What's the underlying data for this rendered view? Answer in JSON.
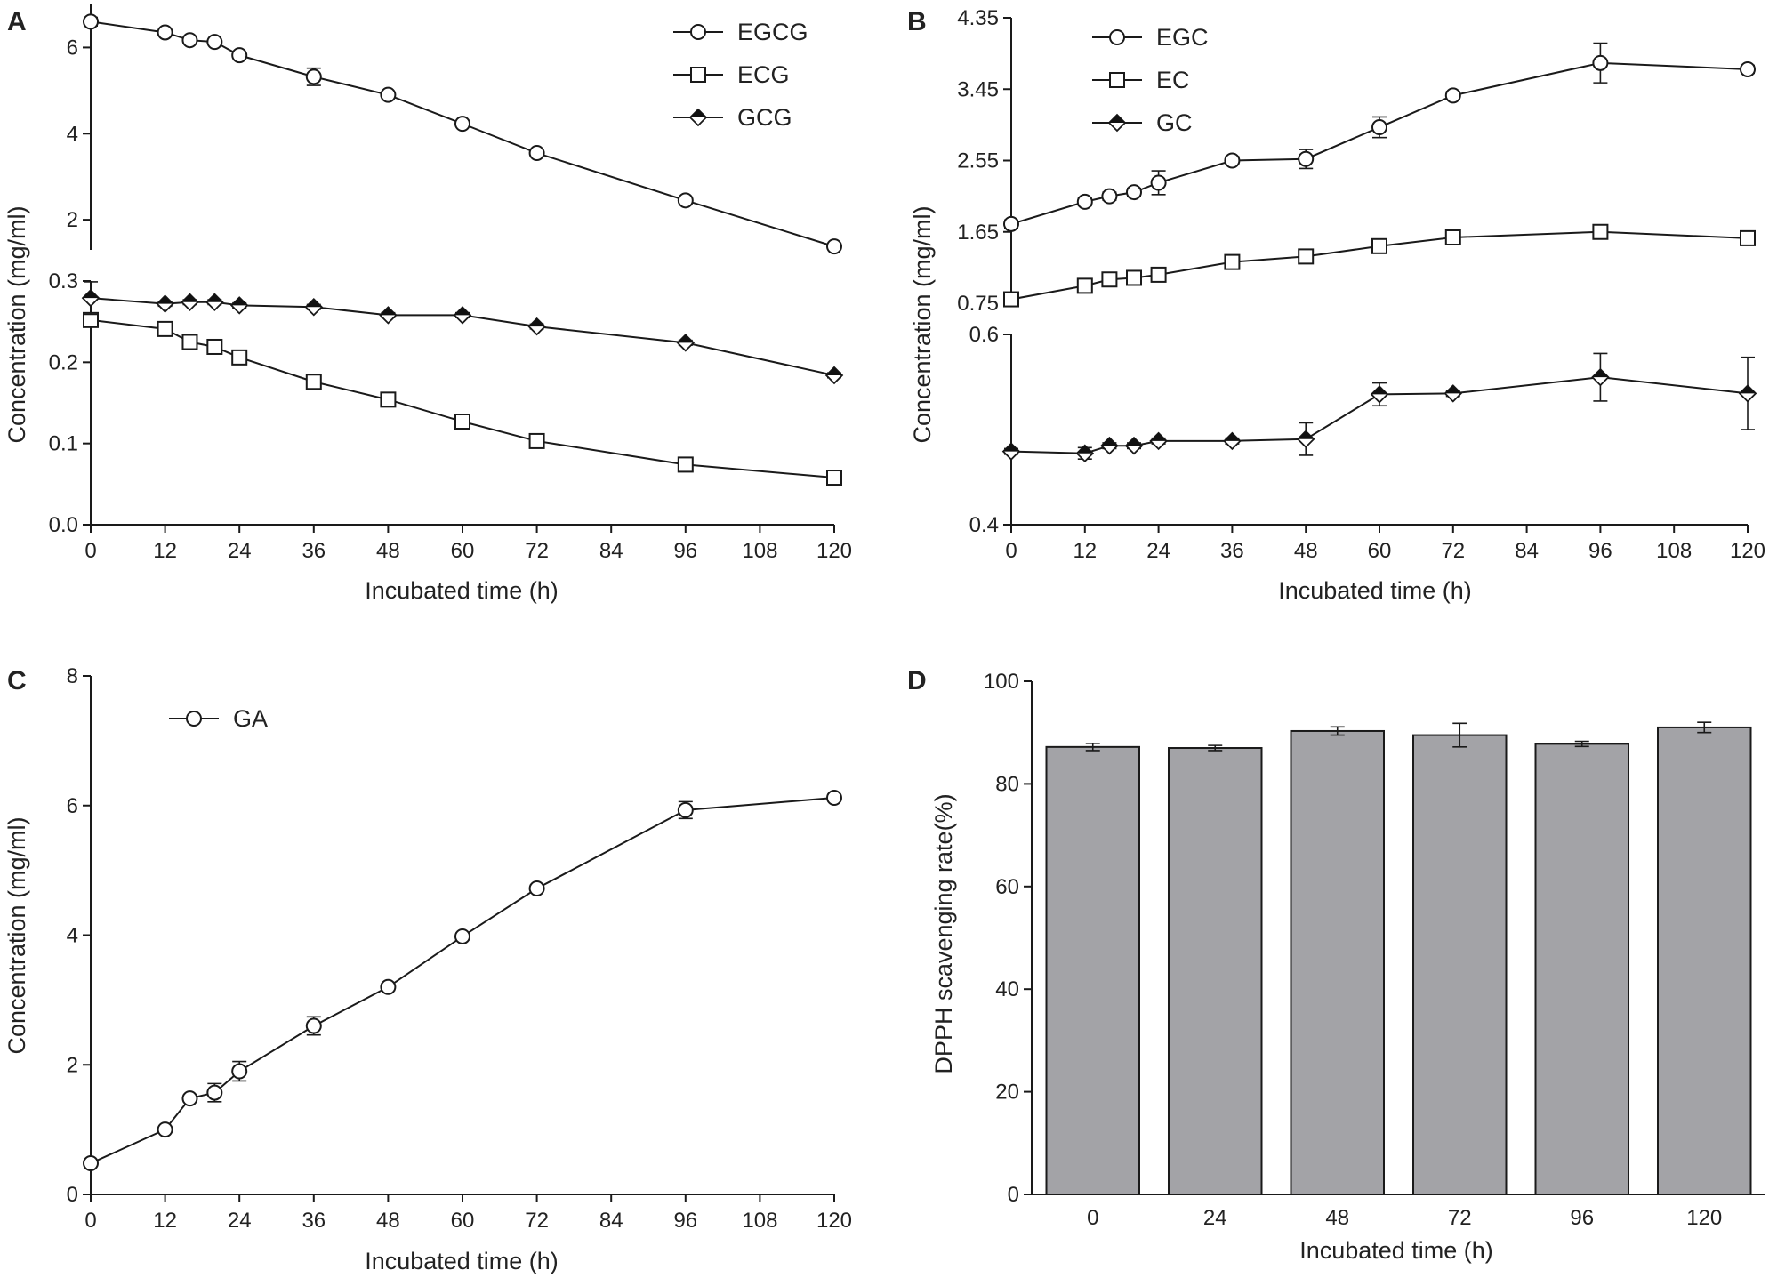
{
  "figure": {
    "colors": {
      "line": "#1a1a1a",
      "marker_fill": "#ffffff",
      "marker_solid": "#111111",
      "bar_fill": "#a3a3a7"
    },
    "panels": [
      {
        "id": "A",
        "label": "A",
        "xlabel": "Incubated time (h)",
        "ylabel": "Concentration (mg/ml)"
      },
      {
        "id": "B",
        "label": "B",
        "xlabel": "Incubated time (h)",
        "ylabel": "Concentration (mg/ml)"
      },
      {
        "id": "C",
        "label": "C",
        "xlabel": "Incubated time (h)",
        "ylabel": "Concentration (mg/ml)"
      },
      {
        "id": "D",
        "label": "D",
        "xlabel": "Incubated time (h)",
        "ylabel": "DPPH scavenging rate(%)"
      }
    ]
  },
  "chart_data": [
    {
      "panel": "A",
      "type": "line",
      "title": "",
      "xlabel": "Incubated time (h)",
      "ylabel": "Concentration (mg/ml)",
      "xlim": [
        0,
        120
      ],
      "xticks": [
        "0",
        "12",
        "24",
        "36",
        "48",
        "60",
        "72",
        "84",
        "96",
        "108",
        "120"
      ],
      "broken_y_axis": true,
      "upper_segment": {
        "ylim": [
          1.3,
          7.0
        ],
        "yticks": [
          "2",
          "4",
          "6"
        ]
      },
      "lower_segment": {
        "ylim": [
          0,
          0.3
        ],
        "yticks": [
          "0.0",
          "0.1",
          "0.2",
          "0.3"
        ]
      },
      "legend": [
        "EGCG",
        "ECG",
        "GCG"
      ],
      "series": [
        {
          "name": "EGCG",
          "segment": "upper",
          "marker": "circle-open",
          "x": [
            0,
            12,
            16,
            20,
            24,
            36,
            48,
            60,
            72,
            96,
            120
          ],
          "y": [
            6.6,
            6.35,
            6.17,
            6.13,
            5.82,
            5.32,
            4.9,
            4.23,
            3.55,
            2.45,
            1.38
          ],
          "err": [
            0.1,
            0.05,
            0.05,
            0.05,
            0.05,
            0.2,
            0.05,
            0.05,
            0.05,
            0.05,
            0.05
          ]
        },
        {
          "name": "ECG",
          "segment": "lower",
          "marker": "square-open",
          "x": [
            0,
            12,
            16,
            20,
            24,
            36,
            48,
            60,
            72,
            96,
            120
          ],
          "y": [
            0.252,
            0.241,
            0.225,
            0.219,
            0.206,
            0.176,
            0.154,
            0.127,
            0.103,
            0.074,
            0.058
          ],
          "err": [
            0.004,
            0.003,
            0.003,
            0.003,
            0.003,
            0.003,
            0.003,
            0.003,
            0.003,
            0.003,
            0.003
          ]
        },
        {
          "name": "GCG",
          "segment": "lower",
          "marker": "diamond-solid",
          "x": [
            0,
            12,
            16,
            20,
            24,
            36,
            48,
            60,
            72,
            96,
            120
          ],
          "y": [
            0.279,
            0.272,
            0.274,
            0.274,
            0.27,
            0.268,
            0.258,
            0.258,
            0.244,
            0.224,
            0.184
          ],
          "err": [
            0.02,
            0.003,
            0.003,
            0.003,
            0.003,
            0.003,
            0.003,
            0.003,
            0.003,
            0.003,
            0.003
          ]
        }
      ]
    },
    {
      "panel": "B",
      "type": "line",
      "title": "",
      "xlabel": "Incubated time (h)",
      "ylabel": "Concentration (mg/ml)",
      "xlim": [
        0,
        120
      ],
      "xticks": [
        "0",
        "12",
        "24",
        "36",
        "48",
        "60",
        "72",
        "84",
        "96",
        "108",
        "120"
      ],
      "broken_y_axis": true,
      "upper_segment": {
        "ylim": [
          0.75,
          4.35
        ],
        "yticks": [
          "0.75",
          "1.65",
          "2.55",
          "3.45",
          "4.35"
        ]
      },
      "lower_segment": {
        "ylim": [
          0.4,
          0.6
        ],
        "yticks": [
          "0.4",
          "0.6"
        ]
      },
      "legend": [
        "EGC",
        "EC",
        "GC"
      ],
      "series": [
        {
          "name": "EGC",
          "segment": "upper",
          "marker": "circle-open",
          "x": [
            0,
            12,
            16,
            20,
            24,
            36,
            48,
            60,
            72,
            96,
            120
          ],
          "y": [
            1.75,
            2.03,
            2.1,
            2.15,
            2.27,
            2.55,
            2.57,
            2.97,
            3.37,
            3.78,
            3.7
          ],
          "err": [
            0.05,
            0.05,
            0.05,
            0.05,
            0.15,
            0.05,
            0.12,
            0.13,
            0.05,
            0.25,
            0.05
          ]
        },
        {
          "name": "EC",
          "segment": "upper",
          "marker": "square-open",
          "x": [
            0,
            12,
            16,
            20,
            24,
            36,
            48,
            60,
            72,
            96,
            120
          ],
          "y": [
            0.8,
            0.97,
            1.05,
            1.07,
            1.11,
            1.27,
            1.34,
            1.47,
            1.58,
            1.65,
            1.57
          ],
          "err": [
            0.03,
            0.03,
            0.03,
            0.03,
            0.03,
            0.03,
            0.03,
            0.03,
            0.03,
            0.03,
            0.03
          ]
        },
        {
          "name": "GC",
          "segment": "lower",
          "marker": "diamond-solid",
          "x": [
            0,
            12,
            16,
            20,
            24,
            36,
            48,
            60,
            72,
            96,
            120
          ],
          "y": [
            0.477,
            0.475,
            0.483,
            0.483,
            0.488,
            0.488,
            0.49,
            0.537,
            0.538,
            0.555,
            0.538
          ],
          "err": [
            0.003,
            0.006,
            0.003,
            0.003,
            0.003,
            0.003,
            0.017,
            0.012,
            0.003,
            0.025,
            0.038
          ]
        }
      ]
    },
    {
      "panel": "C",
      "type": "line",
      "title": "",
      "xlabel": "Incubated time (h)",
      "ylabel": "Concentration (mg/ml)",
      "xlim": [
        0,
        120
      ],
      "ylim": [
        0,
        8
      ],
      "xticks": [
        "0",
        "12",
        "24",
        "36",
        "48",
        "60",
        "72",
        "84",
        "96",
        "108",
        "120"
      ],
      "yticks": [
        "0",
        "2",
        "4",
        "6",
        "8"
      ],
      "legend": [
        "GA"
      ],
      "series": [
        {
          "name": "GA",
          "marker": "circle-open",
          "x": [
            0,
            12,
            16,
            20,
            24,
            36,
            48,
            60,
            72,
            96,
            120
          ],
          "y": [
            0.48,
            1.0,
            1.48,
            1.57,
            1.9,
            2.6,
            3.2,
            3.98,
            4.72,
            5.93,
            6.12
          ],
          "err": [
            0.04,
            0.04,
            0.05,
            0.14,
            0.15,
            0.14,
            0.05,
            0.05,
            0.05,
            0.13,
            0.05
          ]
        }
      ]
    },
    {
      "panel": "D",
      "type": "bar",
      "title": "",
      "xlabel": "Incubated time (h)",
      "ylabel": "DPPH scavenging rate(%)",
      "categories": [
        "0",
        "24",
        "48",
        "72",
        "96",
        "120"
      ],
      "values": [
        87.2,
        87.0,
        90.3,
        89.5,
        87.8,
        91.0
      ],
      "err": [
        0.7,
        0.5,
        0.8,
        2.3,
        0.5,
        1.0
      ],
      "ylim": [
        0,
        100
      ],
      "yticks": [
        "0",
        "20",
        "40",
        "60",
        "80",
        "100"
      ]
    }
  ]
}
